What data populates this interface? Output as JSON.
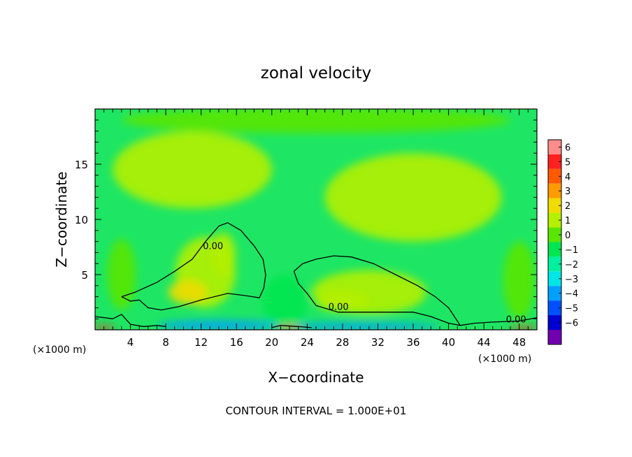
{
  "chart_data": {
    "type": "heatmap",
    "title": "zonal velocity",
    "xlabel": "X−coordinate",
    "ylabel": "Z−coordinate",
    "x_unit_left": "(×1000 m)",
    "x_unit_right": "(×1000 m)",
    "footer": "CONTOUR INTERVAL = 1.000E+01",
    "xlim": [
      0,
      50
    ],
    "ylim": [
      0,
      20
    ],
    "x_ticks": [
      4,
      8,
      12,
      16,
      20,
      24,
      28,
      32,
      36,
      40,
      44,
      48
    ],
    "x_tick_labels": [
      "4",
      "8",
      "12",
      "16",
      "20",
      "24",
      "28",
      "32",
      "36",
      "40",
      "44",
      "48"
    ],
    "y_ticks": [
      5,
      10,
      15
    ],
    "y_tick_labels": [
      "5",
      "10",
      "15"
    ],
    "colorbar": {
      "levels": [
        6,
        5,
        4,
        3,
        2,
        1,
        0,
        -1,
        -2,
        -3,
        -4,
        -5,
        -6
      ],
      "labels": [
        "6",
        "5",
        "4",
        "3",
        "2",
        "1",
        "0",
        "−1",
        "−2",
        "−3",
        "−4",
        "−5",
        "−6"
      ],
      "colors": [
        "#ff8c8c",
        "#ff2020",
        "#ff5a00",
        "#ff9a00",
        "#f0dc00",
        "#b4f000",
        "#5ae600",
        "#00e650",
        "#00f0a0",
        "#00e6e6",
        "#00a0ff",
        "#0050ff",
        "#0000d0",
        "#7000b0"
      ]
    },
    "background_color": "#1ee664",
    "contours": [
      {
        "label": "0.00",
        "label_at": [
          12.2,
          7.3
        ],
        "points": [
          [
            3,
            3
          ],
          [
            4.5,
            3.4
          ],
          [
            7,
            4.3
          ],
          [
            9,
            5.3
          ],
          [
            11,
            6.4
          ],
          [
            12.5,
            8
          ],
          [
            14,
            9.4
          ],
          [
            15,
            9.7
          ],
          [
            16.5,
            9
          ],
          [
            18,
            7.6
          ],
          [
            19,
            6.4
          ],
          [
            19.3,
            5
          ],
          [
            19.1,
            3.8
          ],
          [
            18.6,
            2.9
          ],
          [
            17,
            3.1
          ],
          [
            15,
            3.3
          ],
          [
            12,
            2.7
          ],
          [
            9.5,
            2.1
          ],
          [
            7.5,
            1.8
          ],
          [
            6,
            2
          ],
          [
            5,
            2.7
          ],
          [
            4,
            2.6
          ],
          [
            3,
            3
          ]
        ]
      },
      {
        "label": "0.00",
        "label_at": [
          26.4,
          1.8
        ],
        "points": [
          [
            22.5,
            5.3
          ],
          [
            23.5,
            6
          ],
          [
            25,
            6.4
          ],
          [
            27,
            6.7
          ],
          [
            29,
            6.6
          ],
          [
            31.5,
            6
          ],
          [
            34,
            5
          ],
          [
            36.5,
            4
          ],
          [
            38.5,
            3
          ],
          [
            40,
            2
          ],
          [
            41,
            0.8
          ],
          [
            41.3,
            0.4
          ],
          [
            40,
            0.6
          ],
          [
            38,
            1.2
          ],
          [
            36,
            1.6
          ],
          [
            34,
            1.6
          ],
          [
            32,
            1.6
          ],
          [
            30,
            1.6
          ],
          [
            27.5,
            1.6
          ],
          [
            25,
            2.2
          ],
          [
            24,
            3.3
          ],
          [
            23,
            4.2
          ],
          [
            22.5,
            5.3
          ]
        ]
      },
      {
        "label": "0.00",
        "label_at": [
          46.5,
          0.65
        ],
        "points": [
          [
            41.3,
            0.4
          ],
          [
            43,
            0.6
          ],
          [
            45,
            0.7
          ],
          [
            48,
            0.8
          ],
          [
            50,
            1.1
          ]
        ]
      },
      {
        "label": "",
        "label_at": [
          0,
          0
        ],
        "points": [
          [
            0,
            1.2
          ],
          [
            2,
            1
          ],
          [
            3,
            1.4
          ],
          [
            4,
            0.5
          ],
          [
            5.5,
            0.3
          ],
          [
            7,
            0.4
          ],
          [
            8,
            0.3
          ]
        ]
      },
      {
        "label": "",
        "label_at": [
          0,
          0
        ],
        "points": [
          [
            20,
            0.2
          ],
          [
            21,
            0.4
          ],
          [
            23,
            0.3
          ],
          [
            24.5,
            0.2
          ]
        ]
      }
    ],
    "features": [
      {
        "x": 12.5,
        "z": 5.2,
        "rx": 3.4,
        "rz": 3.2,
        "value": 0.7
      },
      {
        "x": 10.5,
        "z": 3.4,
        "rx": 2.2,
        "rz": 1.1,
        "value": 1.4
      },
      {
        "x": 14.5,
        "z": 6.8,
        "rx": 1.4,
        "rz": 2.0,
        "value": 1.0
      },
      {
        "x": 31,
        "z": 3.4,
        "rx": 6.5,
        "rz": 2.0,
        "value": 0.6
      },
      {
        "x": 28,
        "z": 2.6,
        "rx": 3.0,
        "rz": 1.0,
        "value": 0.9
      },
      {
        "x": 11,
        "z": 14.5,
        "rx": 9,
        "rz": 3.5,
        "value": 0.25
      },
      {
        "x": 36,
        "z": 12,
        "rx": 10,
        "rz": 4,
        "value": 0.2
      },
      {
        "x": 25,
        "z": 19,
        "rx": 22,
        "rz": 1.2,
        "value": -0.6
      },
      {
        "x": 3,
        "z": 5,
        "rx": 1.6,
        "rz": 3.2,
        "value": -0.5
      },
      {
        "x": 48,
        "z": 4.5,
        "rx": 1.8,
        "rz": 3.5,
        "value": -0.5
      },
      {
        "x": 21.5,
        "z": 2.5,
        "rx": 2.5,
        "rz": 2.5,
        "value": -1.2
      },
      {
        "x": 14,
        "z": 0.4,
        "rx": 7,
        "rz": 0.45,
        "value": -4.5
      },
      {
        "x": 30,
        "z": 0.3,
        "rx": 9,
        "rz": 0.35,
        "value": -4.3
      },
      {
        "x": 1,
        "z": 0.15,
        "rx": 1.3,
        "rz": 0.2,
        "value": 4.5
      },
      {
        "x": 22,
        "z": 0.15,
        "rx": 1.5,
        "rz": 0.2,
        "value": 3.5
      },
      {
        "x": 48.5,
        "z": 0.15,
        "rx": 1.6,
        "rz": 0.2,
        "value": 4.8
      }
    ]
  }
}
